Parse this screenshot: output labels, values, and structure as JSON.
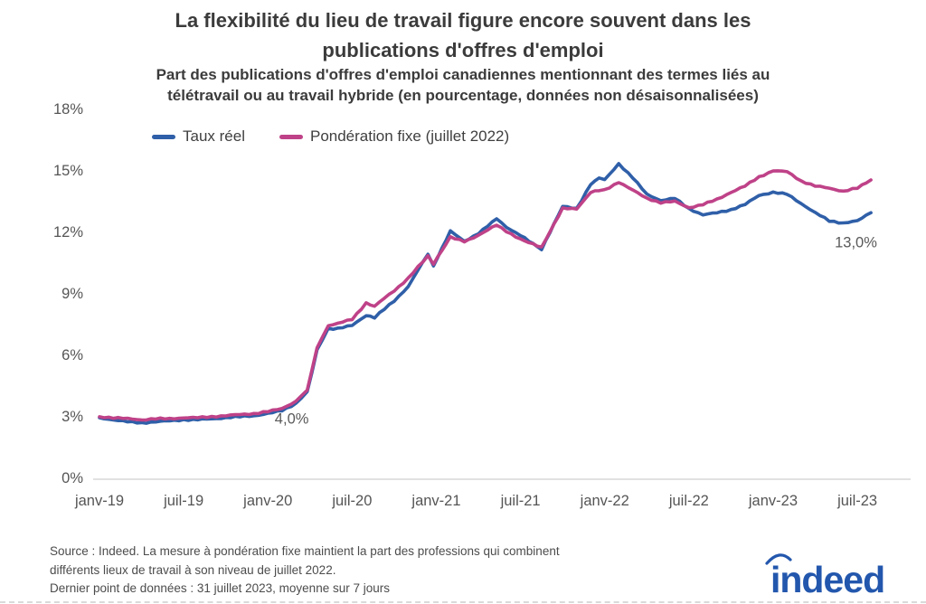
{
  "chart_data": {
    "type": "line",
    "title_lines": [
      "La flexibilité du lieu de travail figure encore souvent dans les",
      "publications d'offres d'emploi"
    ],
    "subtitle_lines": [
      "Part des publications d'offres d'emploi canadiennes mentionnant des termes liés au",
      "télétravail ou au travail hybride (en pourcentage, données non désaisonnalisées)"
    ],
    "x_unit": "months since janv-19 (daily series, 7-day average)",
    "x": [
      0,
      1,
      2,
      3,
      4,
      5,
      6,
      7,
      8,
      9,
      10,
      11,
      12,
      13,
      14,
      14.8,
      15.5,
      16.3,
      17,
      18,
      19,
      19.6,
      21,
      22,
      23.4,
      23.8,
      25,
      26,
      27,
      28.3,
      29,
      30,
      31.5,
      33,
      34,
      35,
      35.6,
      36,
      37,
      38,
      39,
      40,
      41,
      42,
      43,
      44,
      45,
      46,
      47,
      48,
      49,
      50,
      51,
      52,
      53,
      54,
      54.97
    ],
    "series": [
      {
        "id": "taux-reel",
        "label": "Taux réel",
        "color": "#2f5fa8",
        "values": [
          3.0,
          2.9,
          2.8,
          2.75,
          2.8,
          2.85,
          2.9,
          2.9,
          2.95,
          3.0,
          3.05,
          3.1,
          3.2,
          3.35,
          3.7,
          4.25,
          6.3,
          7.35,
          7.35,
          7.5,
          8.0,
          7.9,
          8.7,
          9.4,
          11.0,
          10.4,
          12.1,
          11.6,
          12.0,
          12.7,
          12.3,
          11.9,
          11.2,
          13.3,
          13.2,
          14.4,
          14.7,
          14.6,
          15.4,
          14.7,
          13.9,
          13.6,
          13.7,
          13.2,
          12.9,
          13.0,
          13.15,
          13.4,
          13.85,
          14.0,
          13.9,
          13.45,
          13.0,
          12.6,
          12.5,
          12.6,
          13.0
        ]
      },
      {
        "id": "ponderation-fixe",
        "label": "Pondération fixe (juillet 2022)",
        "color": "#bf4288",
        "values": [
          3.05,
          3.0,
          2.95,
          2.9,
          2.95,
          2.95,
          3.0,
          3.0,
          3.05,
          3.1,
          3.15,
          3.2,
          3.3,
          3.45,
          3.8,
          4.35,
          6.4,
          7.5,
          7.6,
          7.8,
          8.6,
          8.45,
          9.2,
          9.8,
          10.9,
          10.5,
          11.8,
          11.6,
          11.9,
          12.4,
          12.1,
          11.7,
          11.3,
          13.2,
          13.2,
          14.0,
          14.1,
          14.1,
          14.5,
          14.1,
          13.7,
          13.5,
          13.55,
          13.25,
          13.4,
          13.65,
          14.0,
          14.3,
          14.75,
          15.05,
          15.0,
          14.55,
          14.3,
          14.2,
          14.05,
          14.2,
          14.6
        ]
      }
    ],
    "x_axis": {
      "ticks": [
        {
          "pos": 0,
          "label": "janv-19"
        },
        {
          "pos": 6,
          "label": "juil-19"
        },
        {
          "pos": 12,
          "label": "janv-20"
        },
        {
          "pos": 18,
          "label": "juil-20"
        },
        {
          "pos": 24,
          "label": "janv-21"
        },
        {
          "pos": 30,
          "label": "juil-21"
        },
        {
          "pos": 36,
          "label": "janv-22"
        },
        {
          "pos": 42,
          "label": "juil-22"
        },
        {
          "pos": 48,
          "label": "janv-23"
        },
        {
          "pos": 54,
          "label": "juil-23"
        }
      ]
    },
    "y_axis": {
      "range": [
        0,
        18
      ],
      "ticks": [
        {
          "value": 0,
          "label": "0%"
        },
        {
          "value": 3,
          "label": "3%"
        },
        {
          "value": 6,
          "label": "6%"
        },
        {
          "value": 9,
          "label": "9%"
        },
        {
          "value": 12,
          "label": "12%"
        },
        {
          "value": 15,
          "label": "15%"
        },
        {
          "value": 18,
          "label": "18%"
        }
      ]
    },
    "annotations": [
      {
        "text": "4,0%",
        "x": 13.7,
        "y": 2.9
      },
      {
        "text": "13,0%",
        "x": 53.9,
        "y": 11.5
      }
    ],
    "grid": false,
    "legend_position": "top-left"
  },
  "footer": {
    "source_lines": [
      "Source : Indeed. La mesure à pondération fixe maintient la part des professions qui combinent",
      "différents lieux de travail à son niveau de juillet 2022.",
      "Dernier point de données : 31 juillet 2023, moyenne sur 7 jours"
    ],
    "logo_text": "indeed"
  },
  "colors": {
    "series_blue": "#2f5fa8",
    "series_pink": "#bf4288",
    "title_text": "#3b3b3b",
    "axis_text": "#555555",
    "annotation_text": "#595959",
    "baseline": "#cfcfcf",
    "logo_blue": "#2357ad"
  }
}
